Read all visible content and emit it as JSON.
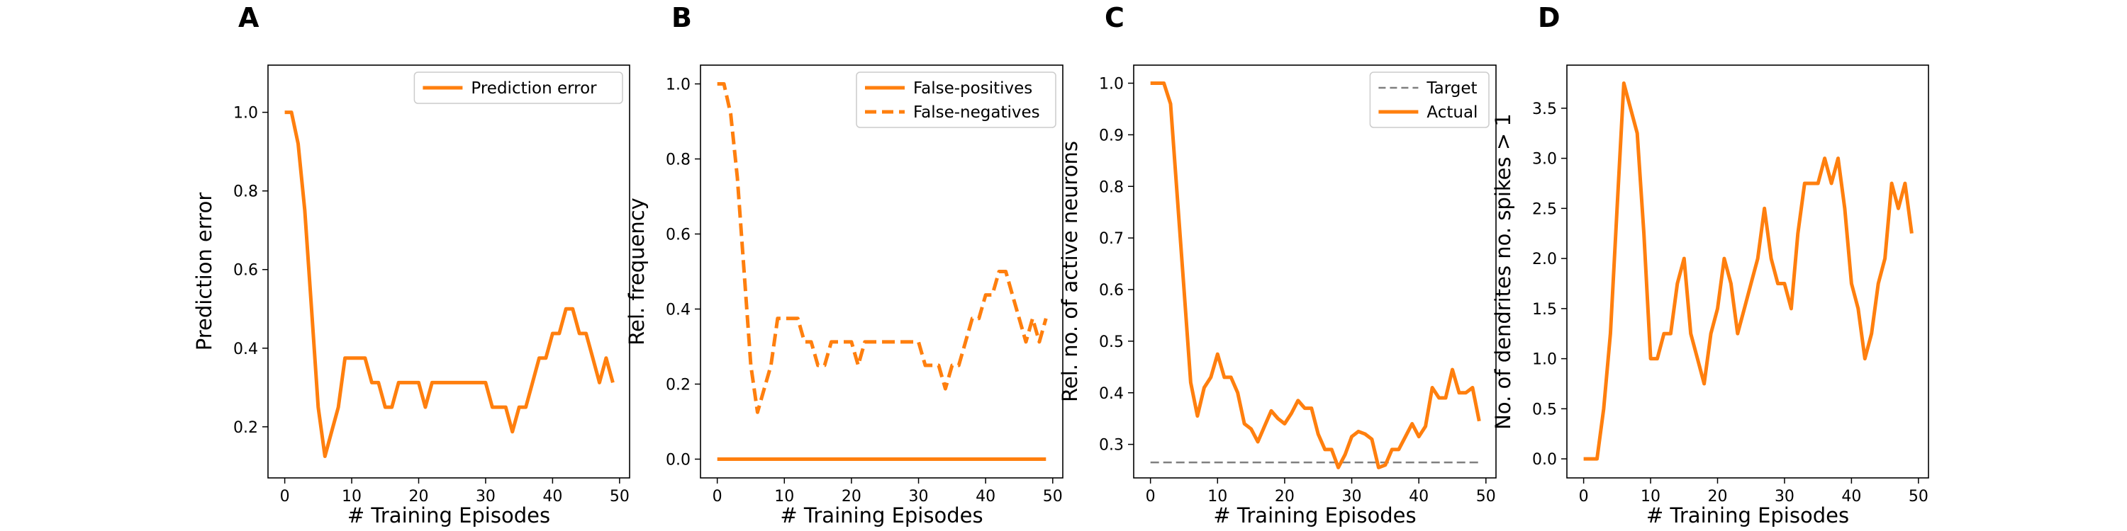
{
  "chart_data": [
    {
      "panel": "A",
      "type": "line",
      "xlabel": "# Training Episodes",
      "ylabel": "Prediction error",
      "xlim": [
        -2.5,
        51.5
      ],
      "ylim": [
        0.07,
        1.12
      ],
      "xticks": [
        0,
        10,
        20,
        30,
        40,
        50
      ],
      "yticks": [
        0.2,
        0.4,
        0.6,
        0.8,
        1.0
      ],
      "ytick_format": 1,
      "grid": false,
      "legend": "top-right",
      "series": [
        {
          "name": "Prediction error",
          "color": "#ff7f0e",
          "dash": "solid",
          "x": [
            0,
            1,
            2,
            3,
            4,
            5,
            6,
            7,
            8,
            9,
            10,
            11,
            12,
            13,
            14,
            15,
            16,
            17,
            18,
            19,
            20,
            21,
            22,
            23,
            24,
            25,
            26,
            27,
            28,
            29,
            30,
            31,
            32,
            33,
            34,
            35,
            36,
            37,
            38,
            39,
            40,
            41,
            42,
            43,
            44,
            45,
            46,
            47,
            48,
            49
          ],
          "y": [
            1.0,
            1.0,
            0.92,
            0.75,
            0.5,
            0.25,
            0.125,
            0.1875,
            0.25,
            0.375,
            0.375,
            0.375,
            0.375,
            0.3125,
            0.3125,
            0.25,
            0.25,
            0.3125,
            0.3125,
            0.3125,
            0.3125,
            0.25,
            0.3125,
            0.3125,
            0.3125,
            0.3125,
            0.3125,
            0.3125,
            0.3125,
            0.3125,
            0.3125,
            0.25,
            0.25,
            0.25,
            0.1875,
            0.25,
            0.25,
            0.3125,
            0.375,
            0.375,
            0.4375,
            0.4375,
            0.5,
            0.5,
            0.4375,
            0.4375,
            0.375,
            0.3125,
            0.375,
            0.3125
          ]
        }
      ],
      "extra_point": {
        "x": 49.5,
        "y": 0.375
      }
    },
    {
      "panel": "B",
      "type": "line",
      "xlabel": "# Training Episodes",
      "ylabel": "Rel. frequency",
      "xlim": [
        -2.5,
        51.5
      ],
      "ylim": [
        -0.05,
        1.05
      ],
      "xticks": [
        0,
        10,
        20,
        30,
        40,
        50
      ],
      "yticks": [
        0.0,
        0.2,
        0.4,
        0.6,
        0.8,
        1.0
      ],
      "ytick_format": 1,
      "grid": false,
      "legend": "top-right",
      "series": [
        {
          "name": "False-positives",
          "color": "#ff7f0e",
          "dash": "solid",
          "x": [
            0,
            49
          ],
          "y": [
            0.0,
            0.0
          ]
        },
        {
          "name": "False-negatives",
          "color": "#ff7f0e",
          "dash": "dashed",
          "x": [
            0,
            1,
            2,
            3,
            4,
            5,
            6,
            7,
            8,
            9,
            10,
            11,
            12,
            13,
            14,
            15,
            16,
            17,
            18,
            19,
            20,
            21,
            22,
            23,
            24,
            25,
            26,
            27,
            28,
            29,
            30,
            31,
            32,
            33,
            34,
            35,
            36,
            37,
            38,
            39,
            40,
            41,
            42,
            43,
            44,
            45,
            46,
            47,
            48,
            49
          ],
          "y": [
            1.0,
            1.0,
            0.92,
            0.75,
            0.5,
            0.25,
            0.125,
            0.1875,
            0.25,
            0.375,
            0.375,
            0.375,
            0.375,
            0.3125,
            0.3125,
            0.25,
            0.25,
            0.3125,
            0.3125,
            0.3125,
            0.3125,
            0.25,
            0.3125,
            0.3125,
            0.3125,
            0.3125,
            0.3125,
            0.3125,
            0.3125,
            0.3125,
            0.3125,
            0.25,
            0.25,
            0.25,
            0.1875,
            0.25,
            0.25,
            0.3125,
            0.375,
            0.375,
            0.4375,
            0.4375,
            0.5,
            0.5,
            0.4375,
            0.375,
            0.3125,
            0.375,
            0.3125,
            0.375
          ]
        }
      ]
    },
    {
      "panel": "C",
      "type": "line",
      "xlabel": "# Training Episodes",
      "ylabel": "Rel. no. of active neurons",
      "xlim": [
        -2.5,
        51.5
      ],
      "ylim": [
        0.235,
        1.035
      ],
      "xticks": [
        0,
        10,
        20,
        30,
        40,
        50
      ],
      "yticks": [
        0.3,
        0.4,
        0.5,
        0.6,
        0.7,
        0.8,
        0.9,
        1.0
      ],
      "ytick_format": 1,
      "grid": false,
      "legend": "top-right",
      "series": [
        {
          "name": "Target",
          "color": "#7f7f7f",
          "dash": "dashed",
          "x": [
            0,
            49
          ],
          "y": [
            0.265,
            0.265
          ]
        },
        {
          "name": "Actual",
          "color": "#ff7f0e",
          "dash": "solid",
          "x": [
            0,
            1,
            2,
            3,
            4,
            5,
            6,
            7,
            8,
            9,
            10,
            11,
            12,
            13,
            14,
            15,
            16,
            17,
            18,
            19,
            20,
            21,
            22,
            23,
            24,
            25,
            26,
            27,
            28,
            29,
            30,
            31,
            32,
            33,
            34,
            35,
            36,
            37,
            38,
            39,
            40,
            41,
            42,
            43,
            44,
            45,
            46,
            47,
            48,
            49
          ],
          "y": [
            1.0,
            1.0,
            1.0,
            0.96,
            0.78,
            0.6,
            0.42,
            0.355,
            0.41,
            0.43,
            0.475,
            0.43,
            0.43,
            0.4,
            0.34,
            0.33,
            0.305,
            0.335,
            0.365,
            0.35,
            0.34,
            0.36,
            0.385,
            0.37,
            0.37,
            0.32,
            0.29,
            0.29,
            0.255,
            0.28,
            0.315,
            0.325,
            0.32,
            0.31,
            0.255,
            0.26,
            0.29,
            0.29,
            0.315,
            0.34,
            0.315,
            0.335,
            0.41,
            0.39,
            0.39,
            0.445,
            0.4,
            0.4,
            0.41,
            0.345
          ]
        }
      ]
    },
    {
      "panel": "D",
      "type": "line",
      "xlabel": "# Training Episodes",
      "ylabel": "No. of dendrites no. spikes > 1",
      "xlim": [
        -2.5,
        51.5
      ],
      "ylim": [
        -0.19,
        3.93
      ],
      "xticks": [
        0,
        10,
        20,
        30,
        40,
        50
      ],
      "yticks": [
        0.0,
        0.5,
        1.0,
        1.5,
        2.0,
        2.5,
        3.0,
        3.5
      ],
      "ytick_format": 1,
      "grid": false,
      "legend": "none",
      "series": [
        {
          "name": "",
          "color": "#ff7f0e",
          "dash": "solid",
          "x": [
            0,
            1,
            2,
            3,
            4,
            5,
            6,
            7,
            8,
            9,
            10,
            11,
            12,
            13,
            14,
            15,
            16,
            17,
            18,
            19,
            20,
            21,
            22,
            23,
            24,
            25,
            26,
            27,
            28,
            29,
            30,
            31,
            32,
            33,
            34,
            35,
            36,
            37,
            38,
            39,
            40,
            41,
            42,
            43,
            44,
            45,
            46,
            47,
            48,
            49
          ],
          "y": [
            0.0,
            0.0,
            0.0,
            0.5,
            1.25,
            2.5,
            3.75,
            3.5,
            3.25,
            2.25,
            1.0,
            1.0,
            1.25,
            1.25,
            1.75,
            2.0,
            1.25,
            1.0,
            0.75,
            1.25,
            1.5,
            2.0,
            1.75,
            1.25,
            1.5,
            1.75,
            2.0,
            2.5,
            2.0,
            1.75,
            1.75,
            1.5,
            2.25,
            2.75,
            2.75,
            2.75,
            3.0,
            2.75,
            3.0,
            2.5,
            1.75,
            1.5,
            1.0,
            1.25,
            1.75,
            2.0,
            2.75,
            2.5,
            2.75,
            2.25
          ]
        }
      ]
    }
  ]
}
